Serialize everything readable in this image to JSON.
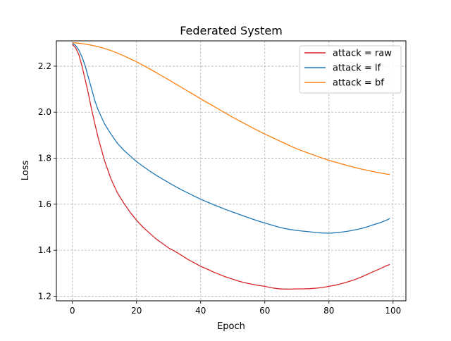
{
  "chart_data": {
    "type": "line",
    "title": "Federated System",
    "xlabel": "Epoch",
    "ylabel": "Loss",
    "xlim": [
      -5,
      104
    ],
    "ylim": [
      1.18,
      2.31
    ],
    "xticks": [
      0,
      20,
      40,
      60,
      80,
      100
    ],
    "yticks": [
      1.2,
      1.4,
      1.6,
      1.8,
      2.0,
      2.2
    ],
    "xtick_labels": [
      "0",
      "20",
      "40",
      "60",
      "80",
      "100"
    ],
    "ytick_labels": [
      "1.2",
      "1.4",
      "1.6",
      "1.8",
      "2.0",
      "2.2"
    ],
    "grid": true,
    "legend_position": "top-right",
    "series": [
      {
        "name": "attack = raw",
        "color": "#d62728",
        "x": [
          0,
          1,
          2,
          3,
          4,
          5,
          6,
          7,
          8,
          10,
          12,
          14,
          16,
          18,
          20,
          22,
          24,
          26,
          28,
          30,
          32,
          34,
          36,
          38,
          40,
          42,
          44,
          46,
          48,
          50,
          52,
          54,
          56,
          58,
          60,
          62,
          64,
          66,
          68,
          70,
          72,
          74,
          76,
          78,
          80,
          82,
          84,
          86,
          88,
          90,
          92,
          94,
          96,
          98,
          99
        ],
        "y": [
          2.295,
          2.28,
          2.25,
          2.2,
          2.14,
          2.08,
          2.01,
          1.95,
          1.89,
          1.79,
          1.71,
          1.65,
          1.605,
          1.565,
          1.53,
          1.5,
          1.475,
          1.45,
          1.43,
          1.41,
          1.395,
          1.378,
          1.36,
          1.345,
          1.33,
          1.318,
          1.305,
          1.294,
          1.283,
          1.274,
          1.265,
          1.258,
          1.252,
          1.247,
          1.243,
          1.237,
          1.233,
          1.231,
          1.231,
          1.232,
          1.232,
          1.233,
          1.235,
          1.238,
          1.243,
          1.248,
          1.255,
          1.263,
          1.272,
          1.283,
          1.295,
          1.308,
          1.32,
          1.333,
          1.338
        ]
      },
      {
        "name": "attack = lf",
        "color": "#1f77b4",
        "x": [
          0,
          1,
          2,
          3,
          4,
          5,
          6,
          7,
          8,
          10,
          12,
          14,
          16,
          18,
          20,
          22,
          24,
          26,
          28,
          30,
          32,
          34,
          36,
          38,
          40,
          42,
          44,
          46,
          48,
          50,
          52,
          54,
          56,
          58,
          60,
          62,
          64,
          66,
          68,
          70,
          72,
          74,
          76,
          78,
          80,
          82,
          84,
          86,
          88,
          90,
          92,
          94,
          96,
          98,
          99
        ],
        "y": [
          2.3,
          2.29,
          2.27,
          2.24,
          2.2,
          2.15,
          2.1,
          2.05,
          2.01,
          1.95,
          1.905,
          1.865,
          1.835,
          1.81,
          1.785,
          1.765,
          1.745,
          1.727,
          1.71,
          1.694,
          1.678,
          1.663,
          1.649,
          1.635,
          1.622,
          1.61,
          1.598,
          1.587,
          1.576,
          1.566,
          1.556,
          1.546,
          1.536,
          1.527,
          1.518,
          1.51,
          1.502,
          1.495,
          1.49,
          1.486,
          1.483,
          1.48,
          1.477,
          1.475,
          1.474,
          1.476,
          1.479,
          1.483,
          1.488,
          1.494,
          1.502,
          1.511,
          1.52,
          1.531,
          1.538
        ]
      },
      {
        "name": "attack = bf",
        "color": "#ff7f0e",
        "x": [
          0,
          2,
          4,
          6,
          8,
          10,
          12,
          14,
          16,
          18,
          20,
          22,
          24,
          26,
          28,
          30,
          32,
          34,
          36,
          38,
          40,
          42,
          44,
          46,
          48,
          50,
          52,
          54,
          56,
          58,
          60,
          62,
          64,
          66,
          68,
          70,
          72,
          74,
          76,
          78,
          80,
          82,
          84,
          86,
          88,
          90,
          92,
          94,
          96,
          98,
          99
        ],
        "y": [
          2.302,
          2.3,
          2.296,
          2.291,
          2.285,
          2.277,
          2.268,
          2.257,
          2.245,
          2.232,
          2.219,
          2.204,
          2.189,
          2.173,
          2.157,
          2.141,
          2.124,
          2.108,
          2.091,
          2.075,
          2.058,
          2.042,
          2.026,
          2.01,
          1.994,
          1.978,
          1.963,
          1.948,
          1.933,
          1.919,
          1.905,
          1.892,
          1.879,
          1.866,
          1.853,
          1.841,
          1.83,
          1.82,
          1.81,
          1.8,
          1.791,
          1.783,
          1.775,
          1.767,
          1.76,
          1.753,
          1.747,
          1.741,
          1.736,
          1.731,
          1.729
        ]
      }
    ]
  }
}
